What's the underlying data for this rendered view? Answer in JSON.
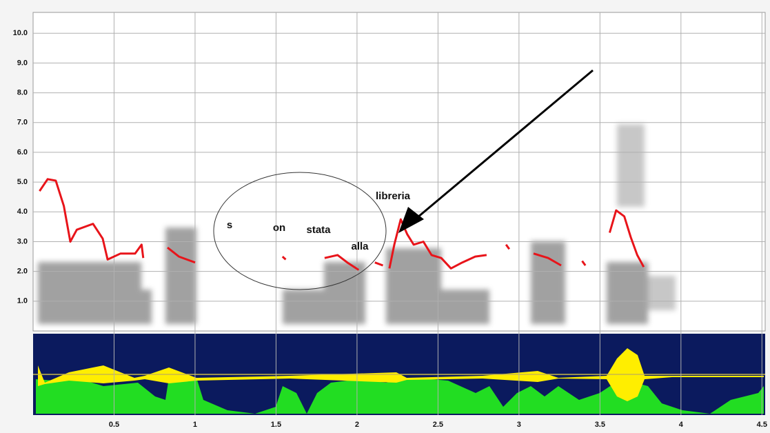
{
  "chart_data": {
    "type": "line",
    "x": [
      0.04,
      0.09,
      0.14,
      0.19,
      0.23,
      0.27,
      0.37,
      0.43,
      0.46,
      0.54,
      0.63,
      0.67,
      0.68,
      null,
      0.83,
      0.9,
      1.0,
      null,
      1.54,
      1.56,
      null,
      1.8,
      1.88,
      1.94,
      2.01,
      null,
      2.11,
      2.16,
      null,
      2.2,
      2.23,
      2.27,
      2.31,
      2.35,
      2.41,
      2.46,
      2.52,
      2.58,
      2.65,
      2.73,
      2.8,
      null,
      2.92,
      2.94,
      null,
      3.09,
      3.18,
      3.26,
      null,
      3.39,
      3.41,
      null,
      3.56,
      3.6,
      3.65,
      3.69,
      3.73,
      3.77
    ],
    "series": [
      {
        "color": "#e8141a",
        "values": [
          4.7,
          5.1,
          5.05,
          4.2,
          3.0,
          3.4,
          3.6,
          3.1,
          2.4,
          2.6,
          2.6,
          2.9,
          2.45,
          null,
          2.8,
          2.5,
          2.3,
          null,
          2.5,
          2.4,
          null,
          2.45,
          2.55,
          2.3,
          2.05,
          null,
          2.3,
          2.2,
          null,
          2.1,
          2.9,
          3.75,
          3.25,
          2.9,
          3.0,
          2.55,
          2.45,
          2.1,
          2.3,
          2.5,
          2.55,
          null,
          2.9,
          2.75,
          null,
          2.6,
          2.45,
          2.2,
          null,
          2.35,
          2.2,
          null,
          3.3,
          4.05,
          3.85,
          3.15,
          2.55,
          2.15
        ]
      }
    ],
    "xlim": [
      0,
      4.52
    ],
    "ylim": [
      0,
      10.7
    ],
    "xticks": [
      0.5,
      1,
      1.5,
      2,
      2.5,
      3,
      3.5,
      4,
      4.5
    ],
    "yticks": [
      {
        "value": 1,
        "label": "1.0"
      },
      {
        "value": 2,
        "label": "2.0"
      },
      {
        "value": 3,
        "label": "3.0"
      },
      {
        "value": 4,
        "label": "4.0"
      },
      {
        "value": 5,
        "label": "5.0"
      },
      {
        "value": 6,
        "label": "6.0"
      },
      {
        "value": 7,
        "label": "7.0"
      },
      {
        "value": 8,
        "label": "8.0"
      },
      {
        "value": 9,
        "label": "9.0"
      },
      {
        "value": 10,
        "label": "10.0"
      }
    ],
    "grid": true,
    "annotations": [
      "s",
      "on",
      "stata",
      "alla",
      "libreria"
    ]
  }
}
